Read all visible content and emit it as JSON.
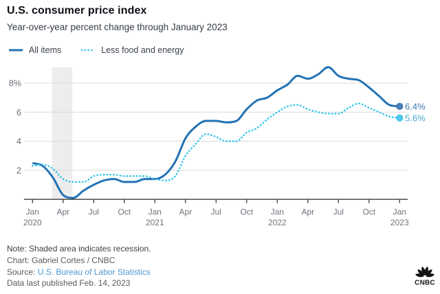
{
  "header": {
    "title": "U.S. consumer price index",
    "subtitle": "Year-over-year percent change through January 2023"
  },
  "chart_data": {
    "type": "line",
    "x": [
      "Jan 2020",
      "Feb 2020",
      "Mar 2020",
      "Apr 2020",
      "May 2020",
      "Jun 2020",
      "Jul 2020",
      "Aug 2020",
      "Sep 2020",
      "Oct 2020",
      "Nov 2020",
      "Dec 2020",
      "Jan 2021",
      "Feb 2021",
      "Mar 2021",
      "Apr 2021",
      "May 2021",
      "Jun 2021",
      "Jul 2021",
      "Aug 2021",
      "Sep 2021",
      "Oct 2021",
      "Nov 2021",
      "Dec 2021",
      "Jan 2022",
      "Feb 2022",
      "Mar 2022",
      "Apr 2022",
      "May 2022",
      "Jun 2022",
      "Jul 2022",
      "Aug 2022",
      "Sep 2022",
      "Oct 2022",
      "Nov 2022",
      "Dec 2022",
      "Jan 2023"
    ],
    "series": [
      {
        "name": "All items",
        "style": "solid",
        "color": "#2272b4",
        "dot_color": "#477eb3",
        "label_color": "#3d79ae",
        "end_label": "6.4%",
        "values": [
          2.5,
          2.3,
          1.5,
          0.3,
          0.1,
          0.6,
          1.0,
          1.3,
          1.4,
          1.2,
          1.2,
          1.4,
          1.4,
          1.7,
          2.6,
          4.2,
          5.0,
          5.4,
          5.4,
          5.3,
          5.4,
          6.2,
          6.8,
          7.0,
          7.5,
          7.9,
          8.5,
          8.3,
          8.6,
          9.1,
          8.5,
          8.3,
          8.2,
          7.7,
          7.1,
          6.5,
          6.4
        ]
      },
      {
        "name": "Less food and energy",
        "style": "dotted",
        "color": "#35c4e8",
        "dot_color": "#4cc8ea",
        "label_color": "#48a9cd",
        "end_label": "5.6%",
        "values": [
          2.3,
          2.4,
          2.1,
          1.4,
          1.2,
          1.2,
          1.6,
          1.7,
          1.7,
          1.6,
          1.6,
          1.6,
          1.4,
          1.3,
          1.6,
          3.0,
          3.8,
          4.5,
          4.3,
          4.0,
          4.0,
          4.6,
          4.9,
          5.5,
          6.0,
          6.4,
          6.5,
          6.2,
          6.0,
          5.9,
          5.9,
          6.3,
          6.6,
          6.3,
          6.0,
          5.7,
          5.6
        ]
      }
    ],
    "ylim": [
      0,
      9.35
    ],
    "yticks": [
      {
        "value": 2,
        "label": "2"
      },
      {
        "value": 4,
        "label": "4"
      },
      {
        "value": 6,
        "label": "6"
      },
      {
        "value": 8,
        "label": "8%"
      }
    ],
    "xticks": [
      {
        "index": 0,
        "month": "Jan",
        "year": "2020"
      },
      {
        "index": 3,
        "month": "Apr"
      },
      {
        "index": 6,
        "month": "Jul"
      },
      {
        "index": 9,
        "month": "Oct"
      },
      {
        "index": 12,
        "month": "Jan",
        "year": "2021"
      },
      {
        "index": 15,
        "month": "Apr"
      },
      {
        "index": 18,
        "month": "Jul"
      },
      {
        "index": 21,
        "month": "Oct"
      },
      {
        "index": 24,
        "month": "Jan",
        "year": "2022"
      },
      {
        "index": 27,
        "month": "Apr"
      },
      {
        "index": 30,
        "month": "Jul"
      },
      {
        "index": 33,
        "month": "Oct"
      },
      {
        "index": 36,
        "month": "Jan",
        "year": "2023"
      }
    ],
    "recession_band": {
      "start_index": 1.9,
      "end_index": 3.9
    },
    "grid": true,
    "legend_position": "top"
  },
  "footer": {
    "note": "Note: Shaded area indicates recession.",
    "chart_credit": "Chart: Gabriel Cortes / CNBC",
    "source_label": "Source: ",
    "source_link": "U.S. Bureau of Labor Statistics",
    "data_published": "Data last published Feb. 14, 2023"
  },
  "logo": {
    "text": "CNBC"
  },
  "colors": {
    "all_items_line": "#2272b4",
    "core_line": "#35c4e8",
    "recession_band": "#ededed",
    "gridline": "#dadada",
    "axis": "#3a3b3d",
    "tick_label": "#6d737a",
    "link": "#4f97cf"
  }
}
